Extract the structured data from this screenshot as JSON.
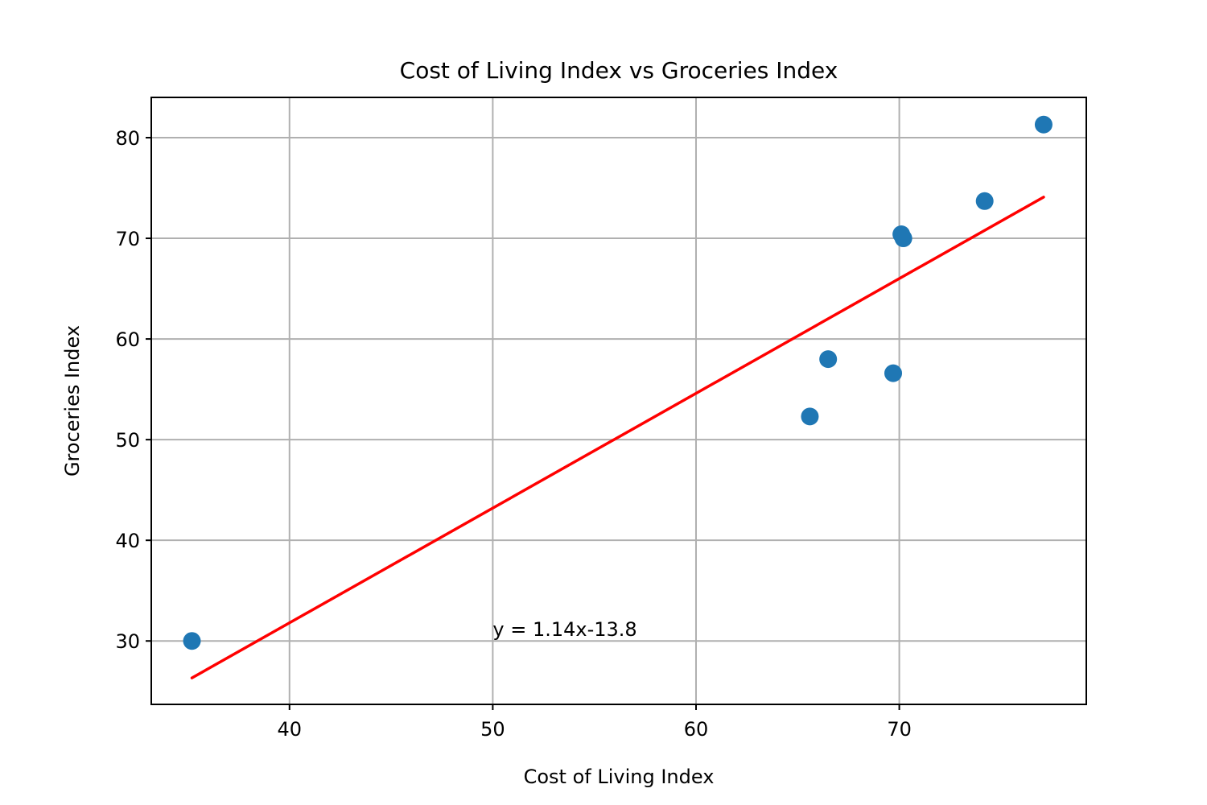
{
  "chart_data": {
    "type": "scatter",
    "title": "Cost of Living Index vs Groceries Index",
    "xlabel": "Cost of Living Index",
    "ylabel": "Groceries Index",
    "xlim": [
      33.2,
      79.2
    ],
    "ylim": [
      23.7,
      84.0
    ],
    "xticks": [
      40,
      50,
      60,
      70
    ],
    "yticks": [
      30,
      40,
      50,
      60,
      70,
      80
    ],
    "grid": true,
    "points": [
      {
        "x": 35.2,
        "y": 30.0
      },
      {
        "x": 65.6,
        "y": 52.3
      },
      {
        "x": 66.5,
        "y": 58.0
      },
      {
        "x": 69.7,
        "y": 56.6
      },
      {
        "x": 70.1,
        "y": 70.4
      },
      {
        "x": 70.2,
        "y": 70.0
      },
      {
        "x": 74.2,
        "y": 73.7
      },
      {
        "x": 77.1,
        "y": 81.3
      }
    ],
    "trendline": {
      "slope": 1.14,
      "intercept": -13.8,
      "x_range": [
        35.2,
        77.1
      ],
      "label": "y = 1.14x-13.8",
      "label_position": {
        "x": 50.0,
        "y": 30.5
      }
    },
    "colors": {
      "points": "#1f77b4",
      "trendline": "#ff0000",
      "annotation": "#ff0000"
    }
  }
}
